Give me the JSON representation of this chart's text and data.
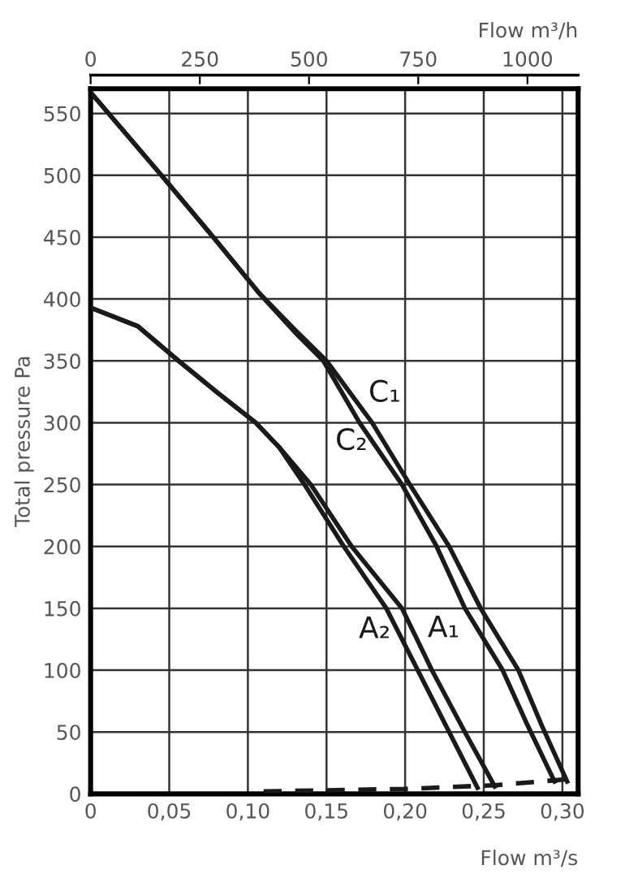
{
  "chart_data": {
    "type": "line",
    "xlabel": "Flow m³/s",
    "x2label": "Flow m³/h",
    "ylabel": "Total pressure Pa",
    "xlim": [
      0,
      0.31
    ],
    "ylim": [
      0,
      570
    ],
    "xticks": [
      0,
      {
        "value": 0.05,
        "label": "0,05"
      },
      {
        "value": 0.1,
        "label": "0,10"
      },
      {
        "value": 0.15,
        "label": "0,15"
      },
      {
        "value": 0.2,
        "label": "0,20"
      },
      {
        "value": 0.25,
        "label": "0,25"
      },
      {
        "value": 0.3,
        "label": "0,30"
      }
    ],
    "x2lim": [
      0,
      1116
    ],
    "x2ticks": [
      0,
      250,
      500,
      750,
      1000
    ],
    "yticks": [
      0,
      50,
      100,
      150,
      200,
      250,
      300,
      350,
      400,
      450,
      500,
      550
    ],
    "grid": true,
    "marker": "none",
    "series": [
      {
        "name": "C₁",
        "color": "#1a1a1a",
        "line_style": "solid",
        "x": [
          0,
          0.045,
          0.078,
          0.107,
          0.13,
          0.15,
          0.179,
          0.203,
          0.228,
          0.248,
          0.272,
          0.287,
          0.303
        ],
        "values": [
          567,
          500,
          450,
          405,
          375,
          350,
          300,
          250,
          200,
          150,
          100,
          55,
          10
        ]
      },
      {
        "name": "C₂",
        "color": "#1a1a1a",
        "line_style": "solid",
        "x": [
          0,
          0.045,
          0.078,
          0.107,
          0.13,
          0.148,
          0.171,
          0.198,
          0.22,
          0.238,
          0.262,
          0.278,
          0.295
        ],
        "values": [
          567,
          500,
          450,
          405,
          373,
          350,
          300,
          250,
          200,
          150,
          100,
          55,
          10
        ]
      },
      {
        "name": "A₁",
        "color": "#1a1a1a",
        "line_style": "solid",
        "x": [
          0,
          0.03,
          0.056,
          0.08,
          0.105,
          0.12,
          0.14,
          0.166,
          0.198,
          0.217,
          0.238,
          0.257
        ],
        "values": [
          393,
          378,
          350,
          325,
          300,
          280,
          250,
          200,
          150,
          100,
          50,
          6
        ]
      },
      {
        "name": "A₂",
        "color": "#1a1a1a",
        "line_style": "solid",
        "x": [
          0,
          0.03,
          0.056,
          0.08,
          0.105,
          0.12,
          0.136,
          0.161,
          0.188,
          0.208,
          0.228,
          0.246
        ],
        "values": [
          393,
          378,
          350,
          325,
          300,
          280,
          250,
          200,
          150,
          100,
          50,
          5
        ]
      },
      {
        "color": "#1a1a1a",
        "line_style": "dashed",
        "x": [
          0.11,
          0.2,
          0.257,
          0.305
        ],
        "values": [
          2,
          4,
          7,
          12
        ]
      }
    ]
  }
}
